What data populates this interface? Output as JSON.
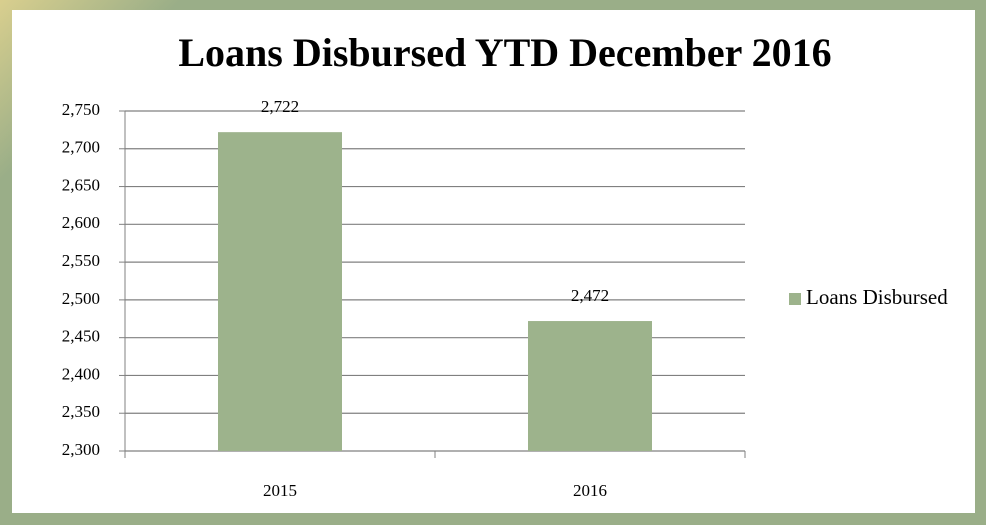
{
  "chart_data": {
    "type": "bar",
    "title": "Loans Disbursed YTD December 2016",
    "categories": [
      "2015",
      "2016"
    ],
    "series": [
      {
        "name": "Loans Disbursed",
        "color": "#9db38c",
        "values": [
          2722,
          2472
        ],
        "value_labels": [
          "2,722",
          "2,472"
        ]
      }
    ],
    "ylim": [
      2300,
      2750
    ],
    "yticks": [
      {
        "value": 2300,
        "label": "2,300"
      },
      {
        "value": 2350,
        "label": "2,350"
      },
      {
        "value": 2400,
        "label": "2,400"
      },
      {
        "value": 2450,
        "label": "2,450"
      },
      {
        "value": 2500,
        "label": "2,500"
      },
      {
        "value": 2550,
        "label": "2,550"
      },
      {
        "value": 2600,
        "label": "2,600"
      },
      {
        "value": 2650,
        "label": "2,650"
      },
      {
        "value": 2700,
        "label": "2,700"
      },
      {
        "value": 2750,
        "label": "2,750"
      }
    ],
    "grid": true,
    "legend": "right"
  }
}
